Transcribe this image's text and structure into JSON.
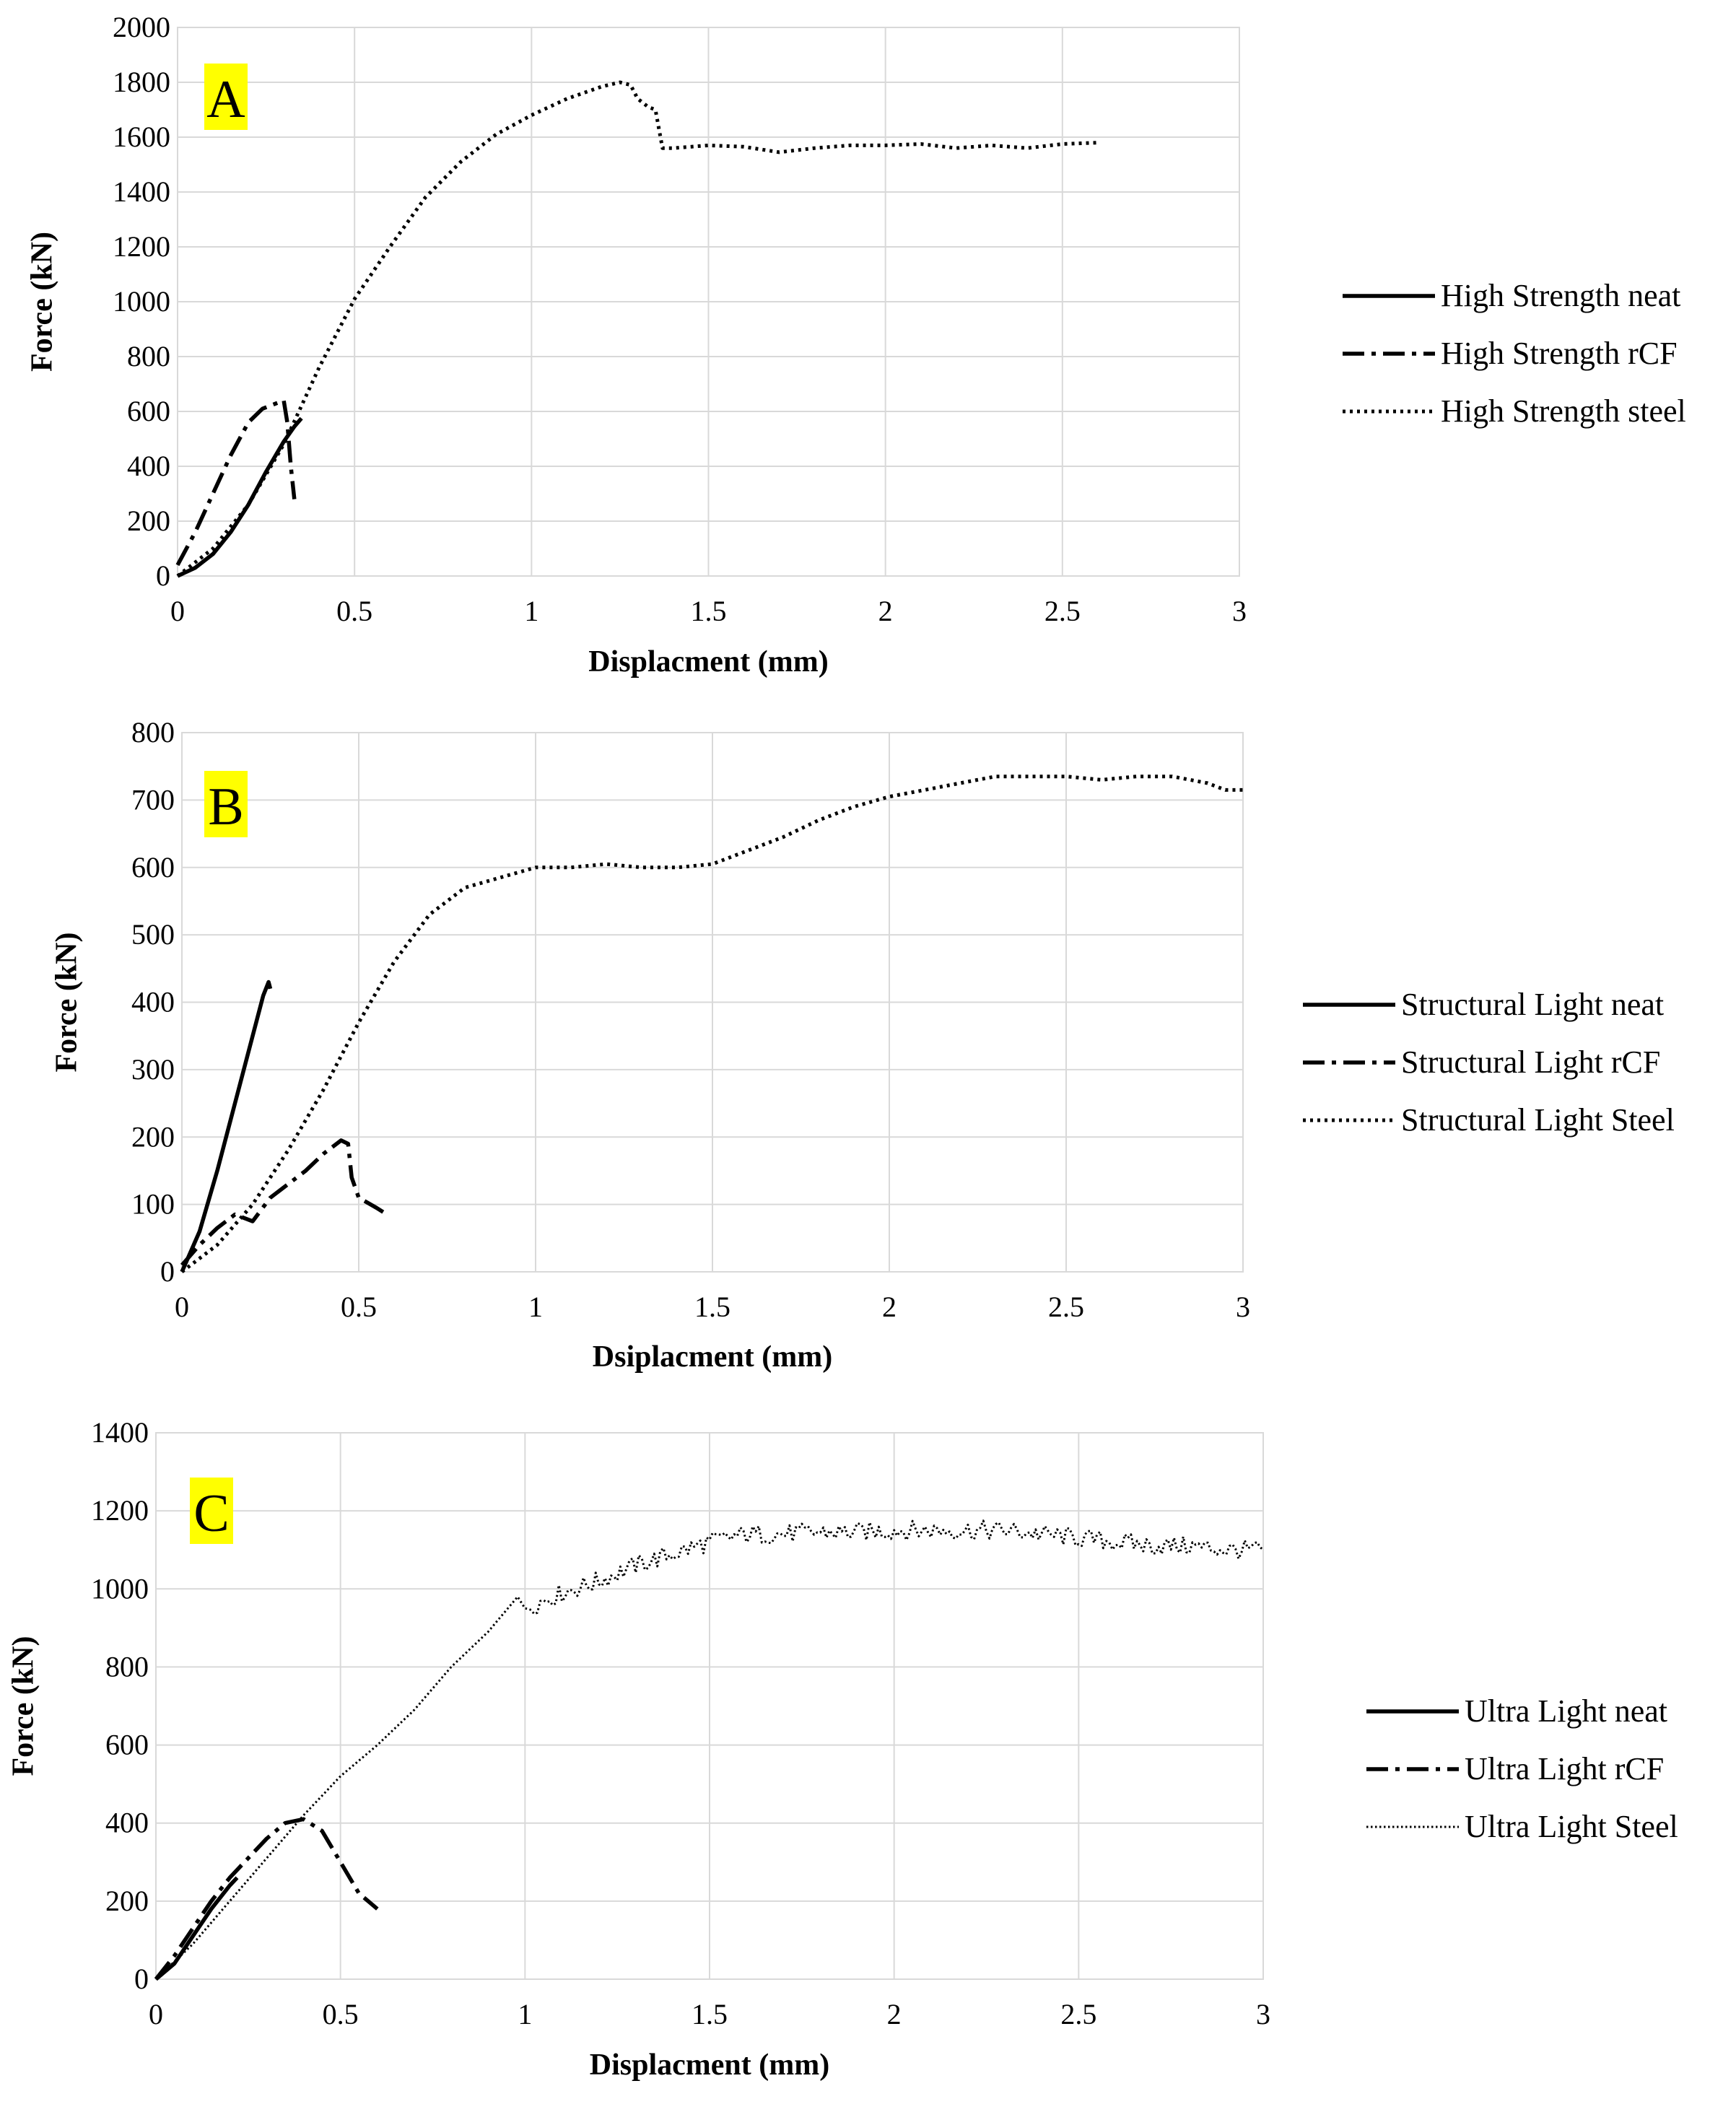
{
  "figure_title": "",
  "chart_data": [
    {
      "id": "A",
      "type": "line",
      "panel_label": "A",
      "title": "",
      "xlabel": "Displacment (mm)",
      "ylabel": "Force (kN)",
      "xlim": [
        0,
        3
      ],
      "ylim": [
        0,
        2000
      ],
      "xticks": [
        0,
        0.5,
        1,
        1.5,
        2,
        2.5,
        3
      ],
      "xtick_labels": [
        "0",
        "0.5",
        "1",
        "1.5",
        "2",
        "2.5",
        "3"
      ],
      "yticks": [
        0,
        200,
        400,
        600,
        800,
        1000,
        1200,
        1400,
        1600,
        1800,
        2000
      ],
      "ytick_labels": [
        "0",
        "200",
        "400",
        "600",
        "800",
        "1000",
        "1200",
        "1400",
        "1600",
        "1800",
        "2000"
      ],
      "grid": true,
      "legend_position": "right",
      "series": [
        {
          "name": "High Strength neat",
          "style": "solid",
          "noise": 0,
          "x": [
            0,
            0.05,
            0.1,
            0.15,
            0.2,
            0.25,
            0.3,
            0.33,
            0.35
          ],
          "y": [
            0,
            30,
            80,
            160,
            260,
            380,
            490,
            545,
            575
          ]
        },
        {
          "name": "High Strength rCF",
          "style": "dashdot",
          "noise": 0,
          "x": [
            0,
            0.05,
            0.1,
            0.15,
            0.2,
            0.24,
            0.28,
            0.3,
            0.31,
            0.32,
            0.33
          ],
          "y": [
            40,
            160,
            300,
            440,
            560,
            610,
            630,
            640,
            560,
            400,
            280
          ]
        },
        {
          "name": "High Strength steel",
          "style": "dotted",
          "noise": 0,
          "x": [
            0,
            0.1,
            0.2,
            0.3,
            0.4,
            0.5,
            0.6,
            0.7,
            0.8,
            0.9,
            1.0,
            1.1,
            1.2,
            1.25,
            1.28,
            1.3,
            1.33,
            1.35,
            1.37,
            1.4,
            1.5,
            1.6,
            1.7,
            1.8,
            1.9,
            2.0,
            2.1,
            2.2,
            2.3,
            2.4,
            2.5,
            2.6
          ],
          "y": [
            0,
            100,
            260,
            480,
            760,
            1010,
            1200,
            1380,
            1510,
            1610,
            1680,
            1740,
            1785,
            1800,
            1790,
            1740,
            1710,
            1700,
            1560,
            1560,
            1570,
            1565,
            1545,
            1560,
            1570,
            1570,
            1575,
            1560,
            1570,
            1560,
            1575,
            1580
          ]
        }
      ]
    },
    {
      "id": "B",
      "type": "line",
      "panel_label": "B",
      "title": "",
      "xlabel": "Dsiplacment (mm)",
      "ylabel": "Force (kN)",
      "xlim": [
        0,
        3
      ],
      "ylim": [
        0,
        800
      ],
      "xticks": [
        0,
        0.5,
        1,
        1.5,
        2,
        2.5,
        3
      ],
      "xtick_labels": [
        "0",
        "0.5",
        "1",
        "1.5",
        "2",
        "2.5",
        "3"
      ],
      "yticks": [
        0,
        100,
        200,
        300,
        400,
        500,
        600,
        700,
        800
      ],
      "ytick_labels": [
        "0",
        "100",
        "200",
        "300",
        "400",
        "500",
        "600",
        "700",
        "800"
      ],
      "grid": true,
      "legend_position": "right",
      "series": [
        {
          "name": "Structural Light neat",
          "style": "solid",
          "noise": 0,
          "x": [
            0,
            0.05,
            0.1,
            0.15,
            0.2,
            0.23,
            0.245,
            0.25
          ],
          "y": [
            0,
            60,
            150,
            250,
            350,
            410,
            430,
            420
          ]
        },
        {
          "name": "Structural Light rCF",
          "style": "dashdot",
          "noise": 0,
          "x": [
            0,
            0.05,
            0.1,
            0.15,
            0.2,
            0.25,
            0.3,
            0.35,
            0.4,
            0.45,
            0.47,
            0.48,
            0.5,
            0.55,
            0.58
          ],
          "y": [
            10,
            40,
            65,
            85,
            75,
            110,
            130,
            150,
            175,
            195,
            190,
            140,
            110,
            95,
            85
          ]
        },
        {
          "name": "Structural Light Steel",
          "style": "dotted",
          "noise": 0,
          "x": [
            0,
            0.1,
            0.2,
            0.3,
            0.4,
            0.5,
            0.6,
            0.7,
            0.8,
            0.9,
            1.0,
            1.1,
            1.2,
            1.3,
            1.4,
            1.5,
            1.6,
            1.7,
            1.8,
            1.9,
            2.0,
            2.1,
            2.2,
            2.3,
            2.4,
            2.5,
            2.6,
            2.7,
            2.8,
            2.9,
            2.95,
            3.0
          ],
          "y": [
            0,
            40,
            100,
            180,
            270,
            370,
            460,
            530,
            570,
            585,
            600,
            600,
            605,
            600,
            600,
            605,
            625,
            645,
            670,
            690,
            705,
            715,
            725,
            735,
            735,
            735,
            730,
            735,
            735,
            725,
            715,
            715
          ]
        }
      ]
    },
    {
      "id": "C",
      "type": "line",
      "panel_label": "C",
      "title": "",
      "xlabel": "Displacment (mm)",
      "ylabel": "Force (kN)",
      "xlim": [
        0,
        3
      ],
      "ylim": [
        0,
        1400
      ],
      "xticks": [
        0,
        0.5,
        1,
        1.5,
        2,
        2.5,
        3
      ],
      "xtick_labels": [
        "0",
        "0.5",
        "1",
        "1.5",
        "2",
        "2.5",
        "3"
      ],
      "yticks": [
        0,
        200,
        400,
        600,
        800,
        1000,
        1200,
        1400
      ],
      "ytick_labels": [
        "0",
        "200",
        "400",
        "600",
        "800",
        "1000",
        "1200",
        "1400"
      ],
      "grid": true,
      "legend_position": "right",
      "series": [
        {
          "name": "Ultra Light neat",
          "style": "solid",
          "noise": 0,
          "x": [
            0,
            0.05,
            0.1,
            0.15,
            0.2,
            0.22
          ],
          "y": [
            0,
            40,
            110,
            180,
            240,
            260
          ]
        },
        {
          "name": "Ultra Light rCF",
          "style": "dashdot",
          "noise": 0,
          "x": [
            0,
            0.05,
            0.1,
            0.15,
            0.2,
            0.25,
            0.3,
            0.35,
            0.4,
            0.45,
            0.5,
            0.55,
            0.6
          ],
          "y": [
            0,
            60,
            130,
            200,
            260,
            310,
            360,
            400,
            410,
            380,
            300,
            220,
            180
          ]
        },
        {
          "name": "Ultra Light Steel",
          "style": "finedotted",
          "noise": 25,
          "x": [
            0,
            0.1,
            0.2,
            0.3,
            0.4,
            0.5,
            0.6,
            0.7,
            0.8,
            0.9,
            0.98,
            1.0,
            1.1,
            1.2,
            1.3,
            1.4,
            1.5,
            1.6,
            1.7,
            1.8,
            1.9,
            2.0,
            2.1,
            2.2,
            2.3,
            2.4,
            2.5,
            2.6,
            2.7,
            2.8,
            2.9,
            3.0
          ],
          "y": [
            0,
            90,
            200,
            310,
            420,
            520,
            600,
            690,
            800,
            890,
            980,
            950,
            990,
            1020,
            1060,
            1090,
            1120,
            1140,
            1140,
            1145,
            1145,
            1150,
            1150,
            1150,
            1150,
            1140,
            1130,
            1120,
            1110,
            1110,
            1100,
            1100
          ]
        }
      ]
    }
  ]
}
